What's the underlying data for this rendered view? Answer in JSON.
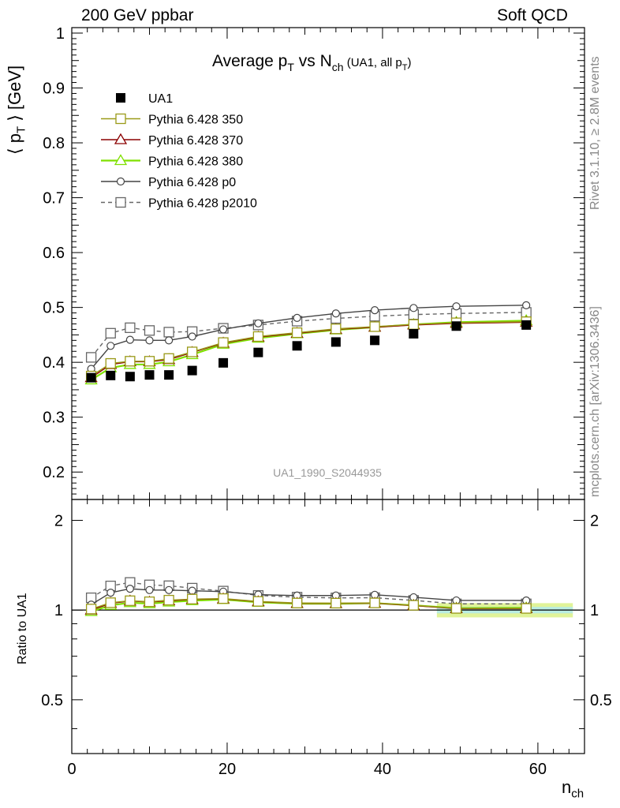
{
  "header": {
    "left": "200 GeV ppbar",
    "right": "Soft QCD"
  },
  "side_labels": {
    "rivet": "Rivet 3.1.10, ≥ 2.8M events",
    "mcplots": "mcplots.cern.ch [arXiv:1306.3436]"
  },
  "chart_data": {
    "type": "scatter",
    "title_main": "Average p",
    "title_sub1": "T",
    "title_mid": " vs N",
    "title_sub2": "ch",
    "title_small": " (UA1, all p",
    "title_small_sub": "T",
    "title_small_end": ")",
    "analysis_id": "UA1_1990_S2044935",
    "ylabel": "⟨ p",
    "ylabel_sub": "T",
    "ylabel_end": " ⟩ [GeV]",
    "ratio_ylabel": "Ratio to UA1",
    "xlabel": "n",
    "xlabel_sub": "ch",
    "xlim": [
      0,
      66
    ],
    "ylim": [
      0.15,
      1.01
    ],
    "ratio_ylim": [
      0.33,
      2.35
    ],
    "x_ticks": [
      "0",
      "20",
      "40",
      "60"
    ],
    "y_ticks": [
      "0.2",
      "0.3",
      "0.4",
      "0.5",
      "0.6",
      "0.7",
      "0.8",
      "0.9",
      "1"
    ],
    "ratio_ticks": [
      "0.5",
      "1",
      "2"
    ],
    "legend_position": "top-left",
    "series": [
      {
        "name": "UA1",
        "color": "#000000",
        "marker": "filled-square",
        "x": [
          2.5,
          5,
          7.5,
          10,
          12.5,
          15.5,
          19.5,
          24,
          29,
          34,
          39,
          44,
          49.5,
          58.5
        ],
        "y": [
          0.372,
          0.376,
          0.374,
          0.377,
          0.377,
          0.385,
          0.399,
          0.418,
          0.43,
          0.437,
          0.44,
          0.452,
          0.466,
          0.468
        ]
      },
      {
        "name": "Pythia 6.428 350",
        "color": "#9a9a18",
        "marker": "open-square",
        "x": [
          2.5,
          5,
          7.5,
          10,
          12.5,
          15.5,
          19.5,
          24,
          29,
          34,
          39,
          44,
          49.5,
          58.5
        ],
        "y": [
          0.375,
          0.398,
          0.402,
          0.402,
          0.407,
          0.419,
          0.436,
          0.447,
          0.454,
          0.461,
          0.465,
          0.469,
          0.472,
          0.474
        ]
      },
      {
        "name": "Pythia 6.428 370",
        "color": "#8b0000",
        "marker": "open-triangle",
        "x": [
          2.5,
          5,
          7.5,
          10,
          12.5,
          15.5,
          19.5,
          24,
          29,
          34,
          39,
          44,
          49.5,
          58.5
        ],
        "y": [
          0.372,
          0.396,
          0.401,
          0.401,
          0.405,
          0.418,
          0.435,
          0.446,
          0.453,
          0.46,
          0.464,
          0.468,
          0.471,
          0.473
        ]
      },
      {
        "name": "Pythia 6.428 380",
        "color": "#7fe000",
        "marker": "open-triangle",
        "x": [
          2.5,
          5,
          7.5,
          10,
          12.5,
          15.5,
          19.5,
          24,
          29,
          34,
          39,
          44,
          49.5,
          58.5
        ],
        "y": [
          0.368,
          0.39,
          0.396,
          0.396,
          0.401,
          0.414,
          0.433,
          0.444,
          0.452,
          0.459,
          0.464,
          0.469,
          0.473,
          0.476
        ]
      },
      {
        "name": "Pythia 6.428 p0",
        "color": "#444444",
        "marker": "open-circle",
        "x": [
          2.5,
          5,
          7.5,
          10,
          12.5,
          15.5,
          19.5,
          24,
          29,
          34,
          39,
          44,
          49.5,
          58.5
        ],
        "y": [
          0.388,
          0.43,
          0.441,
          0.44,
          0.44,
          0.447,
          0.46,
          0.471,
          0.481,
          0.489,
          0.495,
          0.499,
          0.502,
          0.504
        ]
      },
      {
        "name": "Pythia 6.428 p2010",
        "color": "#666666",
        "marker": "open-square",
        "dashed": true,
        "x": [
          2.5,
          5,
          7.5,
          10,
          12.5,
          15.5,
          19.5,
          24,
          29,
          34,
          39,
          44,
          49.5,
          58.5
        ],
        "y": [
          0.409,
          0.453,
          0.463,
          0.458,
          0.455,
          0.456,
          0.462,
          0.468,
          0.475,
          0.48,
          0.484,
          0.487,
          0.489,
          0.491
        ]
      }
    ]
  }
}
